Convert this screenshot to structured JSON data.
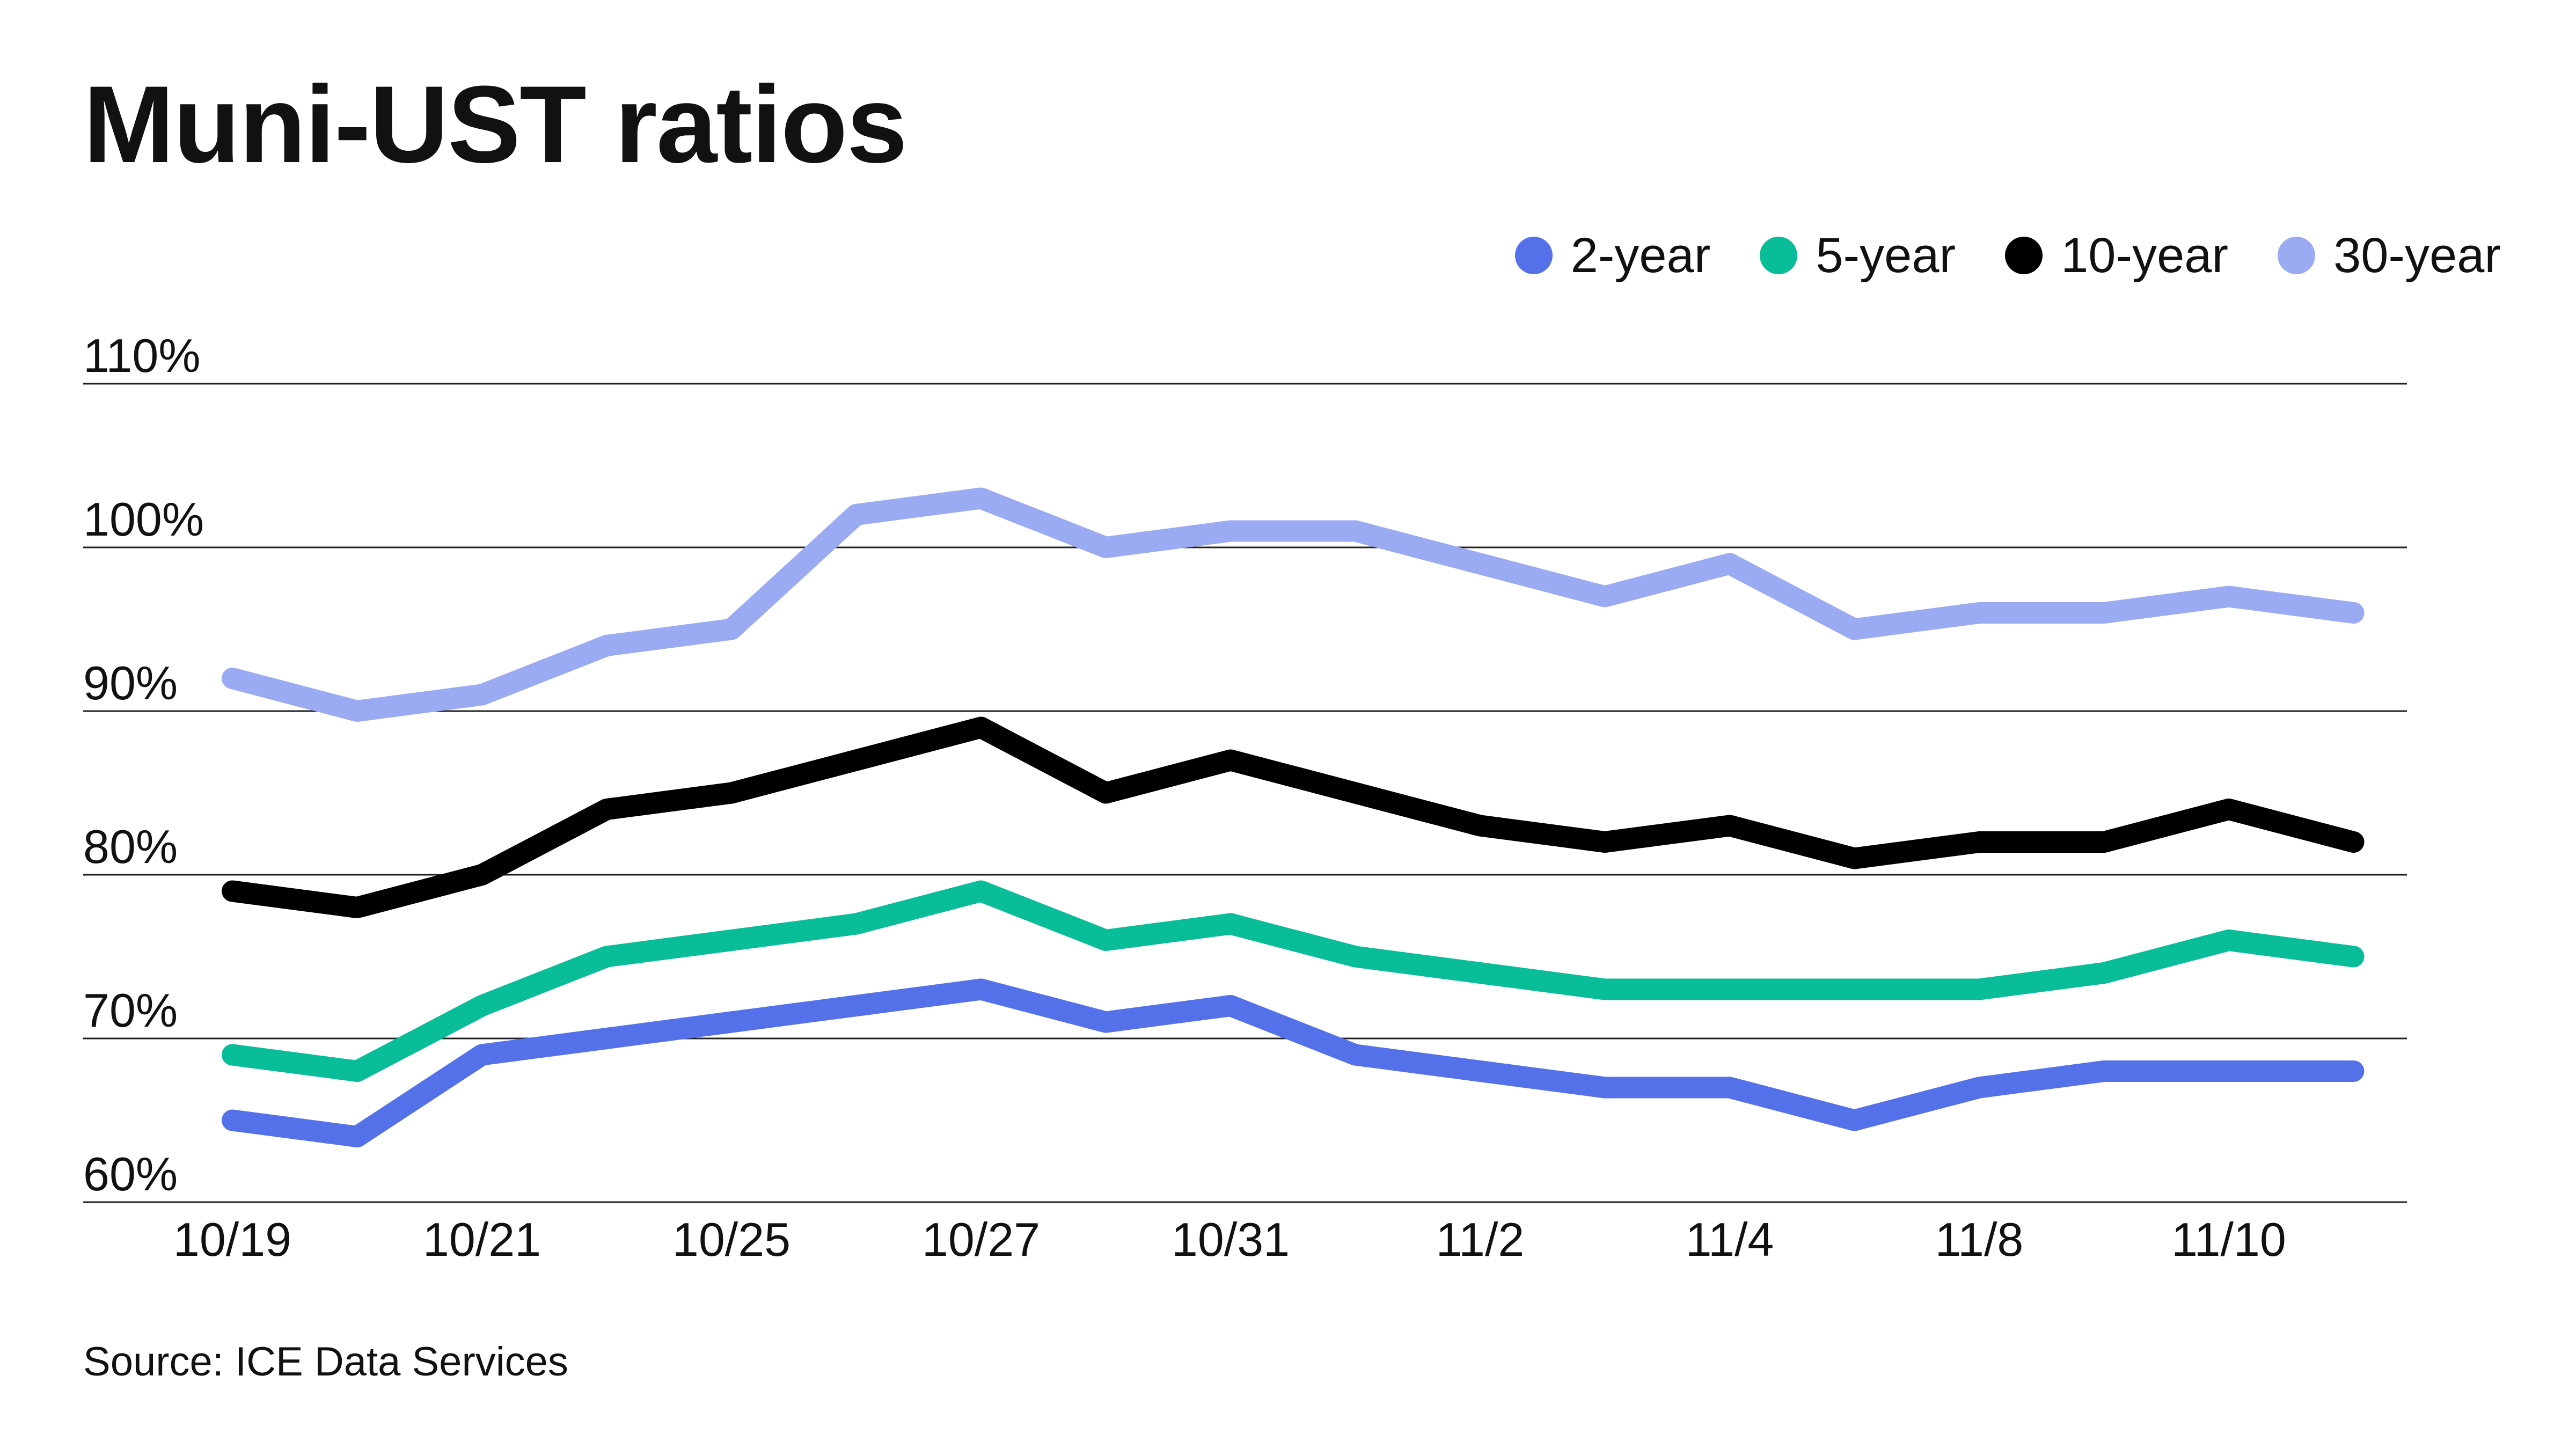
{
  "title": "Muni-UST ratios",
  "source": "Source: ICE Data Services",
  "legend": {
    "items": [
      {
        "label": "2-year",
        "color": "#5571e9"
      },
      {
        "label": "5-year",
        "color": "#08bd98"
      },
      {
        "label": "10-year",
        "color": "#000000"
      },
      {
        "label": "30-year",
        "color": "#9aaaf3"
      }
    ]
  },
  "chart_data": {
    "type": "line",
    "title": "Muni-UST ratios",
    "xlabel": "",
    "ylabel": "",
    "x_tick_labels": [
      "10/19",
      "10/21",
      "10/25",
      "10/27",
      "10/31",
      "11/2",
      "11/4",
      "11/8",
      "11/10"
    ],
    "x_tick_positions": [
      0,
      2,
      4,
      6,
      8,
      10,
      12,
      14,
      16
    ],
    "y_ticks": [
      60,
      70,
      80,
      90,
      100,
      110
    ],
    "y_tick_labels": [
      "60%",
      "70%",
      "80%",
      "90%",
      "100%",
      "110%"
    ],
    "ylim": [
      60,
      110
    ],
    "grid": "horizontal",
    "legend_position": "top-right",
    "series": [
      {
        "name": "2-year",
        "color": "#5571e9",
        "values": [
          65,
          64,
          69,
          70,
          71,
          72,
          73,
          71,
          72,
          69,
          68,
          67,
          67,
          65,
          67,
          68,
          68,
          68
        ]
      },
      {
        "name": "5-year",
        "color": "#08bd98",
        "values": [
          69,
          68,
          72,
          75,
          76,
          77,
          79,
          76,
          77,
          75,
          74,
          73,
          73,
          73,
          73,
          74,
          76,
          75
        ]
      },
      {
        "name": "10-year",
        "color": "#000000",
        "values": [
          79,
          78,
          80,
          84,
          85,
          87,
          89,
          85,
          87,
          85,
          83,
          82,
          83,
          81,
          82,
          82,
          84,
          82
        ]
      },
      {
        "name": "30-year",
        "color": "#9aaaf3",
        "values": [
          92,
          90,
          91,
          94,
          95,
          102,
          103,
          100,
          101,
          101,
          99,
          97,
          99,
          95,
          96,
          96,
          97,
          96
        ]
      }
    ]
  }
}
